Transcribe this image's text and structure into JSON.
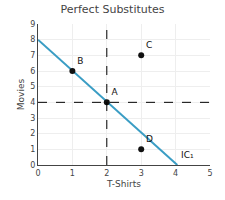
{
  "chart_data": {
    "type": "scatter",
    "title": "Perfect Substitutes",
    "x_label": "T-Shirts",
    "y_label": "Movies",
    "xlim": [
      0,
      5
    ],
    "ylim": [
      0,
      9
    ],
    "xticks": [
      0,
      1,
      2,
      3,
      4,
      5
    ],
    "yticks": [
      0,
      1,
      2,
      3,
      4,
      5,
      6,
      7,
      8,
      9
    ],
    "grid": true,
    "series": [
      {
        "type": "line",
        "color": "#3a9dc4",
        "x": [
          0,
          4.05
        ],
        "values": [
          8,
          0
        ]
      },
      {
        "type": "scatter",
        "color": "#111111",
        "x": [
          1,
          2,
          3,
          3
        ],
        "values": [
          6,
          4,
          7,
          1
        ],
        "point_labels": [
          "B",
          "A",
          "C",
          "D"
        ]
      }
    ],
    "annotations": [
      {
        "text": "IC₁",
        "x": 4.1,
        "y": 0.2
      }
    ],
    "reference_lines": [
      {
        "x": 2,
        "color": "#000000",
        "line_style": "dashed"
      },
      {
        "y": 4,
        "color": "#000000",
        "line_style": "dashed"
      }
    ]
  }
}
